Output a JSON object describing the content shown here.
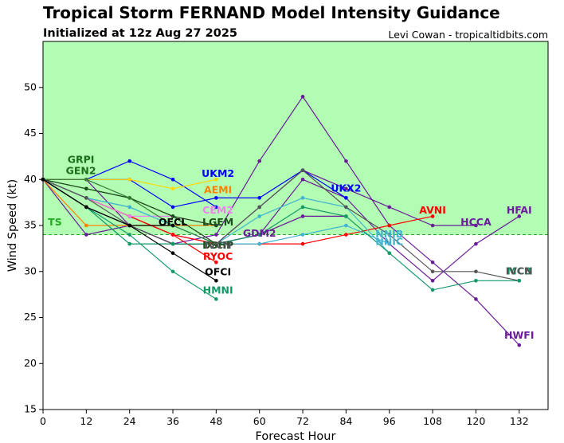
{
  "header": {
    "title": "Tropical Storm FERNAND Model Intensity Guidance",
    "subtitle": "Initialized at 12z Aug 27 2025",
    "credit": "Levi Cowan - tropicaltidbits.com"
  },
  "chart_data": {
    "type": "line",
    "xlabel": "Forecast Hour",
    "ylabel": "Wind Speed (kt)",
    "xlim": [
      0,
      140
    ],
    "ylim": [
      15,
      55
    ],
    "xticks": [
      0,
      12,
      24,
      36,
      48,
      60,
      72,
      84,
      96,
      108,
      120,
      132
    ],
    "yticks": [
      15,
      20,
      25,
      30,
      35,
      40,
      45,
      50
    ],
    "threshold": {
      "label": "TS",
      "value": 34,
      "color": "#22aa22",
      "fill_above": "#b3fcb3"
    },
    "grid": false,
    "series": [
      {
        "name": "HWFI",
        "color": "#6a1b9a",
        "x": [
          0,
          12,
          24,
          36,
          48,
          60,
          72,
          84,
          96,
          108,
          120,
          132
        ],
        "y": [
          40,
          40,
          35,
          33,
          34,
          42,
          49,
          42,
          35,
          31,
          27,
          22
        ]
      },
      {
        "name": "HFAI",
        "color": "#6a1b9a",
        "x": [
          0,
          12,
          24,
          36,
          48,
          60,
          72,
          84,
          96,
          108,
          120,
          132
        ],
        "y": [
          40,
          34,
          35,
          33,
          33,
          34,
          40,
          38,
          33,
          29,
          33,
          36
        ]
      },
      {
        "name": "HCCA",
        "color": "#6a1b9a",
        "x": [
          0,
          12,
          24,
          36,
          48,
          60,
          72,
          84,
          96,
          108,
          120
        ],
        "y": [
          40,
          38,
          36,
          34,
          33,
          37,
          41,
          39,
          37,
          35,
          35
        ]
      },
      {
        "name": "GDM2",
        "color": "#6a1b9a",
        "x": [
          0,
          12,
          24,
          36,
          48,
          60,
          72,
          84
        ],
        "y": [
          40,
          37,
          35,
          33,
          33,
          34,
          36,
          36
        ]
      },
      {
        "name": "UKM2",
        "color": "#0000ff",
        "x": [
          0,
          12,
          24,
          36,
          48
        ],
        "y": [
          40,
          40,
          42,
          40,
          37
        ]
      },
      {
        "name": "UKX2",
        "color": "#0000ff",
        "x": [
          0,
          12,
          24,
          36,
          48,
          60,
          72,
          84
        ],
        "y": [
          40,
          40,
          40,
          37,
          38,
          38,
          41,
          38
        ]
      },
      {
        "name": "AVNI",
        "color": "#ff0000",
        "x": [
          0,
          12,
          24,
          36,
          48,
          60,
          72,
          84,
          96,
          108
        ],
        "y": [
          40,
          38,
          36,
          34,
          33,
          33,
          33,
          34,
          35,
          36
        ]
      },
      {
        "name": "RYOC",
        "color": "#ff0000",
        "x": [
          0,
          12,
          24,
          36,
          48
        ],
        "y": [
          40,
          38,
          36,
          34,
          31
        ]
      },
      {
        "name": "AEMI",
        "color": "#ff7f00",
        "x": [
          0,
          12,
          24,
          36,
          48
        ],
        "y": [
          40,
          35,
          35,
          35,
          35
        ]
      },
      {
        "name": "GRPI",
        "color": "#ffd700",
        "x": [
          0,
          12,
          24,
          36,
          48
        ],
        "y": [
          40,
          40,
          40,
          39,
          40
        ]
      },
      {
        "name": "CEM2",
        "color": "#ee82ee",
        "x": [
          0,
          12,
          24,
          36,
          48
        ],
        "y": [
          40,
          38,
          36,
          36,
          35
        ]
      },
      {
        "name": "NNIB",
        "color": "#40b4d0",
        "x": [
          0,
          12,
          24,
          36,
          48,
          60,
          72,
          84,
          96
        ],
        "y": [
          40,
          38,
          37,
          35,
          33,
          36,
          38,
          37,
          32
        ]
      },
      {
        "name": "NNIC",
        "color": "#40b4d0",
        "x": [
          0,
          12,
          24,
          36,
          48,
          60,
          72,
          84,
          96
        ],
        "y": [
          40,
          38,
          37,
          35,
          33,
          33,
          34,
          35,
          33
        ]
      },
      {
        "name": "IVCN",
        "color": "#555555",
        "x": [
          0,
          12,
          24,
          36,
          48,
          60,
          72,
          84,
          96,
          108,
          120,
          132
        ],
        "y": [
          40,
          38,
          35,
          33,
          33,
          37,
          41,
          37,
          34,
          30,
          30,
          29
        ]
      },
      {
        "name": "MCB",
        "color": "#119966",
        "x": [
          0,
          12,
          24,
          36,
          48,
          60,
          72,
          84,
          96,
          108,
          120,
          132
        ],
        "y": [
          40,
          37,
          33,
          33,
          33,
          34,
          37,
          36,
          32,
          28,
          29,
          29
        ]
      },
      {
        "name": "HMNI",
        "color": "#119966",
        "x": [
          0,
          12,
          24,
          36,
          48
        ],
        "y": [
          40,
          37,
          34,
          30,
          27
        ]
      },
      {
        "name": "DSHP",
        "color": "#1d4d1d",
        "x": [
          0,
          12,
          24,
          36,
          48
        ],
        "y": [
          40,
          39,
          38,
          36,
          33
        ]
      },
      {
        "name": "LGEM",
        "color": "#1d4d1d",
        "x": [
          0,
          12,
          24,
          36,
          48
        ],
        "y": [
          40,
          39,
          38,
          36,
          35
        ]
      },
      {
        "name": "GEN2",
        "color": "#2e7d32",
        "x": [
          0,
          12,
          24,
          36,
          48
        ],
        "y": [
          40,
          40,
          38,
          35,
          33
        ]
      },
      {
        "name": "OFCL",
        "color": "#000000",
        "x": [
          0,
          12,
          24,
          36
        ],
        "y": [
          40,
          37,
          35,
          35
        ]
      },
      {
        "name": "OFCI",
        "color": "#000000",
        "x": [
          0,
          12,
          24,
          36,
          48
        ],
        "y": [
          40,
          37,
          35,
          32,
          29
        ]
      }
    ],
    "annotations": [
      {
        "text": "GRPI",
        "color": "#1a6e1a",
        "x": 10.5,
        "y": 42.1
      },
      {
        "text": "GEN2",
        "color": "#1a6e1a",
        "x": 10.5,
        "y": 40.9
      },
      {
        "text": "TS",
        "color": "#22aa22",
        "x": 3.3,
        "y": 35.3
      },
      {
        "text": "UKM2",
        "color": "#0000ff",
        "x": 48.5,
        "y": 40.6
      },
      {
        "text": "AEMI",
        "color": "#ff7f00",
        "x": 48.5,
        "y": 38.8
      },
      {
        "text": "CEM2",
        "color": "#ee82ee",
        "x": 48.5,
        "y": 36.6
      },
      {
        "text": "OFCL",
        "color": "#000000",
        "x": 36,
        "y": 35.3
      },
      {
        "text": "LGEM",
        "color": "#1d4d1d",
        "x": 48.5,
        "y": 35.3
      },
      {
        "text": "GDM2",
        "color": "#6a1b9a",
        "x": 60,
        "y": 34.1
      },
      {
        "text": "DSHP",
        "color": "#1d4d1d",
        "x": 48.5,
        "y": 32.8
      },
      {
        "text": "IVCN",
        "color": "#555555",
        "x": 48.5,
        "y": 32.8
      },
      {
        "text": "RYOC",
        "color": "#ff0000",
        "x": 48.5,
        "y": 31.6
      },
      {
        "text": "OFCI",
        "color": "#000000",
        "x": 48.5,
        "y": 29.9
      },
      {
        "text": "HMNI",
        "color": "#119966",
        "x": 48.5,
        "y": 27.9
      },
      {
        "text": "UKX2",
        "color": "#0000ff",
        "x": 84,
        "y": 39.0
      },
      {
        "text": "AVNI",
        "color": "#ff0000",
        "x": 108,
        "y": 36.6
      },
      {
        "text": "HCCA",
        "color": "#6a1b9a",
        "x": 120,
        "y": 35.3
      },
      {
        "text": "HFAI",
        "color": "#6a1b9a",
        "x": 132,
        "y": 36.6
      },
      {
        "text": "NNIB",
        "color": "#40b4d0",
        "x": 96,
        "y": 34.0
      },
      {
        "text": "NNIC",
        "color": "#40b4d0",
        "x": 96,
        "y": 33.2
      },
      {
        "text": "MCB",
        "color": "#119966",
        "x": 132,
        "y": 30.0
      },
      {
        "text": "IVCN",
        "color": "#555555",
        "x": 132,
        "y": 30.0
      },
      {
        "text": "HWFI",
        "color": "#6a1b9a",
        "x": 132,
        "y": 23.0
      }
    ]
  }
}
